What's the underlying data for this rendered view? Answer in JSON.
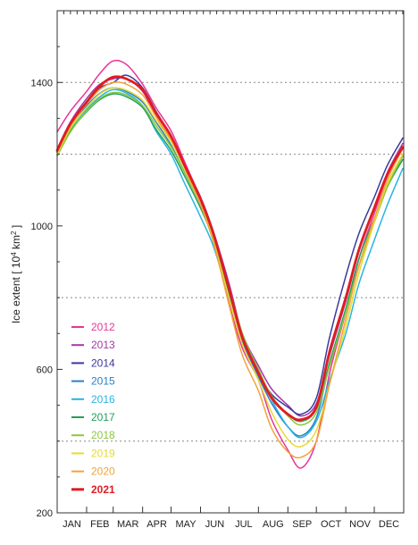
{
  "chart_data": {
    "type": "line",
    "title": "",
    "ylabel_main": "Ice extent [ 10",
    "ylabel_sup": "4",
    "ylabel_unit": " km",
    "ylabel_unit_sup": "2",
    "ylabel_close": " ]",
    "xlabel": "",
    "ylim": [
      200,
      1600
    ],
    "y_ticks": [
      200,
      600,
      1000,
      1400
    ],
    "y_tick_labels": [
      "200",
      "600",
      "1000",
      "1400"
    ],
    "y_gridlines": [
      400,
      800,
      1200,
      1400
    ],
    "grid": "dotted horizontal",
    "legend_position": "bottom-left",
    "months": [
      "JAN",
      "FEB",
      "MAR",
      "APR",
      "MAY",
      "JUN",
      "JUL",
      "AUG",
      "SEP",
      "OCT",
      "NOV",
      "DEC"
    ],
    "x_unit": "day of year",
    "x": [
      1,
      15,
      32,
      46,
      60,
      74,
      91,
      105,
      121,
      135,
      152,
      166,
      182,
      196,
      213,
      227,
      244,
      258,
      274,
      288,
      305,
      319,
      335,
      349,
      365
    ],
    "series": [
      {
        "name": "2012",
        "color": "#e8349a",
        "width": 1.5,
        "values": [
          1262,
          1320,
          1375,
          1425,
          1460,
          1450,
          1395,
          1330,
          1265,
          1180,
          1075,
          960,
          785,
          660,
          570,
          460,
          375,
          325,
          400,
          590,
          760,
          910,
          1035,
          1140,
          1215
        ]
      },
      {
        "name": "2013",
        "color": "#a13aa8",
        "width": 1.5,
        "values": [
          1215,
          1290,
          1355,
          1395,
          1410,
          1410,
          1375,
          1305,
          1240,
          1170,
          1080,
          980,
          840,
          700,
          610,
          545,
          500,
          470,
          505,
          640,
          790,
          930,
          1050,
          1150,
          1230
        ]
      },
      {
        "name": "2014",
        "color": "#3a3a9c",
        "width": 1.5,
        "values": [
          1212,
          1285,
          1345,
          1385,
          1400,
          1420,
          1385,
          1320,
          1250,
          1170,
          1080,
          980,
          830,
          690,
          590,
          530,
          495,
          475,
          520,
          690,
          860,
          980,
          1080,
          1170,
          1245
        ]
      },
      {
        "name": "2015",
        "color": "#2a7fc4",
        "width": 1.5,
        "values": [
          1205,
          1280,
          1335,
          1370,
          1385,
          1375,
          1345,
          1290,
          1225,
          1150,
          1060,
          960,
          810,
          680,
          580,
          505,
          440,
          415,
          465,
          615,
          760,
          890,
          1010,
          1110,
          1195
        ]
      },
      {
        "name": "2016",
        "color": "#28b4e4",
        "width": 1.5,
        "values": [
          1200,
          1270,
          1325,
          1360,
          1380,
          1370,
          1335,
          1265,
          1200,
          1120,
          1025,
          940,
          800,
          690,
          600,
          515,
          440,
          410,
          455,
          570,
          700,
          840,
          960,
          1060,
          1160
        ]
      },
      {
        "name": "2017",
        "color": "#22a05a",
        "width": 1.5,
        "values": [
          1198,
          1265,
          1318,
          1352,
          1368,
          1360,
          1330,
          1270,
          1210,
          1140,
          1050,
          960,
          815,
          690,
          595,
          525,
          475,
          455,
          490,
          620,
          770,
          910,
          1020,
          1110,
          1185
        ]
      },
      {
        "name": "2018",
        "color": "#8cc63e",
        "width": 1.5,
        "values": [
          1195,
          1262,
          1320,
          1355,
          1372,
          1365,
          1335,
          1280,
          1220,
          1150,
          1060,
          970,
          830,
          700,
          600,
          525,
          470,
          445,
          480,
          610,
          760,
          890,
          1010,
          1110,
          1195
        ]
      },
      {
        "name": "2019",
        "color": "#e6dc30",
        "width": 1.5,
        "values": [
          1200,
          1272,
          1330,
          1368,
          1385,
          1378,
          1350,
          1295,
          1235,
          1160,
          1060,
          955,
          800,
          670,
          570,
          480,
          405,
          385,
          430,
          560,
          720,
          870,
          1010,
          1120,
          1200
        ]
      },
      {
        "name": "2020",
        "color": "#f4a23a",
        "width": 1.5,
        "values": [
          1205,
          1278,
          1340,
          1380,
          1400,
          1395,
          1365,
          1305,
          1240,
          1165,
          1060,
          950,
          780,
          640,
          540,
          435,
          370,
          355,
          400,
          560,
          740,
          890,
          1020,
          1130,
          1215
        ]
      },
      {
        "name": "2021",
        "color": "#e21b23",
        "width": 2.8,
        "values": [
          1210,
          1285,
          1345,
          1390,
          1415,
          1410,
          1380,
          1315,
          1250,
          1170,
          1075,
          975,
          825,
          690,
          590,
          520,
          475,
          460,
          495,
          650,
          800,
          935,
          1050,
          1145,
          1220
        ]
      }
    ]
  }
}
